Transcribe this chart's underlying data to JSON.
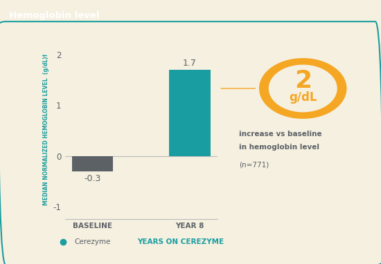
{
  "title": "Hemoglobin level",
  "title_bg_color": "#1a9da0",
  "title_text_color": "#ffffff",
  "background_color": "#f5f0e0",
  "categories": [
    "BASELINE",
    "YEAR 8"
  ],
  "values": [
    -0.3,
    1.7
  ],
  "bar_colors": [
    "#5c6166",
    "#1a9da0"
  ],
  "ylabel": "MEDIAN NORMALIZED HEMOGLOBIN LEVEL  (g/dL)†",
  "ylabel_color": "#1a9da0",
  "ylim": [
    -1.25,
    2.3
  ],
  "yticks": [
    -1,
    0,
    1,
    2
  ],
  "bar_labels": [
    "-0.3",
    "1.7"
  ],
  "circle_value": "2",
  "circle_unit": "g/dL",
  "circle_color": "#f5a623",
  "circle_bg": "#f5f0e0",
  "circle_text_color": "#f5a623",
  "annotation_text_line1": "increase vs baseline",
  "annotation_text_line2": "in hemoglobin level",
  "annotation_n": "(n=771)",
  "annotation_text_color": "#5c6166",
  "legend_dot_color": "#1a9da0",
  "legend_text": "Cerezyme",
  "legend_text_color": "#5c6166",
  "legend_subtext": "YEARS ON CEREZYME",
  "legend_subtext_color": "#1a9da0",
  "arrow_color": "#f5a623",
  "border_color": "#1a9da0"
}
